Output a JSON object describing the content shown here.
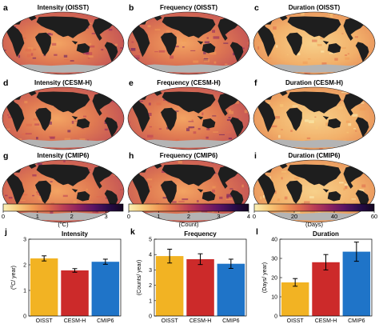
{
  "map_panels": [
    {
      "letter": "a",
      "title": "Intensity (OISST)"
    },
    {
      "letter": "b",
      "title": "Frequency (OISST)"
    },
    {
      "letter": "c",
      "title": "Duration (OISST)"
    },
    {
      "letter": "d",
      "title": "Intensity (CESM-H)"
    },
    {
      "letter": "e",
      "title": "Frequency (CESM-H)"
    },
    {
      "letter": "f",
      "title": "Duration (CESM-H)"
    },
    {
      "letter": "g",
      "title": "Intensity (CMIP6)"
    },
    {
      "letter": "h",
      "title": "Frequency (CMIP6)"
    },
    {
      "letter": "i",
      "title": "Duration (CMIP6)"
    }
  ],
  "colorbars": [
    {
      "ticks": [
        "0",
        "1",
        "2",
        "3"
      ],
      "tick_values": [
        0,
        1,
        2,
        3
      ],
      "range": [
        0,
        3.5
      ],
      "unit": "(°C)",
      "unit_base": "(",
      "unit_sup": "o",
      "unit_rest": "C)"
    },
    {
      "ticks": [
        "0",
        "1",
        "2",
        "3",
        "4"
      ],
      "tick_values": [
        0,
        1,
        2,
        3,
        4
      ],
      "range": [
        0,
        4
      ],
      "unit": "(Count)"
    },
    {
      "ticks": [
        "0",
        "20",
        "40",
        "60"
      ],
      "tick_values": [
        0,
        20,
        40,
        60
      ],
      "range": [
        0,
        60
      ],
      "unit": "(Days)"
    }
  ],
  "colors": {
    "land": "#1e1e1e",
    "sea_ice": "#b4b4b4",
    "cmap": [
      "#fbf1b6",
      "#f8c978",
      "#f09a56",
      "#de6a4c",
      "#bb3e55",
      "#8e225f",
      "#5b1464",
      "#2a0c4a",
      "#120620"
    ],
    "oisst": "#f2b323",
    "cesm_h": "#cc2a2a",
    "cmip6": "#1f74c8"
  },
  "chart_data": [
    {
      "type": "bar",
      "letter": "j",
      "title": "Intensity",
      "ylabel": "(°C/ year)",
      "ylabel_base": "(",
      "ylabel_sup": "o",
      "ylabel_rest": "C/ year)",
      "categories": [
        "OISST",
        "CESM-H",
        "CMIP6"
      ],
      "values": [
        2.25,
        1.78,
        2.12
      ],
      "errors": [
        0.1,
        0.07,
        0.1
      ],
      "ylim": [
        0,
        3
      ],
      "yticks": [
        0,
        1,
        2,
        3
      ]
    },
    {
      "type": "bar",
      "letter": "k",
      "title": "Frequency",
      "ylabel": "(Counts/ year)",
      "categories": [
        "OISST",
        "CESM-H",
        "CMIP6"
      ],
      "values": [
        3.9,
        3.7,
        3.4
      ],
      "errors": [
        0.45,
        0.35,
        0.3
      ],
      "ylim": [
        0,
        5
      ],
      "yticks": [
        0,
        1,
        2,
        3,
        4,
        5
      ]
    },
    {
      "type": "bar",
      "letter": "l",
      "title": "Duration",
      "ylabel": "(Days/ year)",
      "categories": [
        "OISST",
        "CESM-H",
        "CMIP6"
      ],
      "values": [
        17.5,
        28,
        33.5
      ],
      "errors": [
        2,
        4,
        5
      ],
      "ylim": [
        0,
        40
      ],
      "yticks": [
        0,
        10,
        20,
        30,
        40
      ]
    }
  ]
}
